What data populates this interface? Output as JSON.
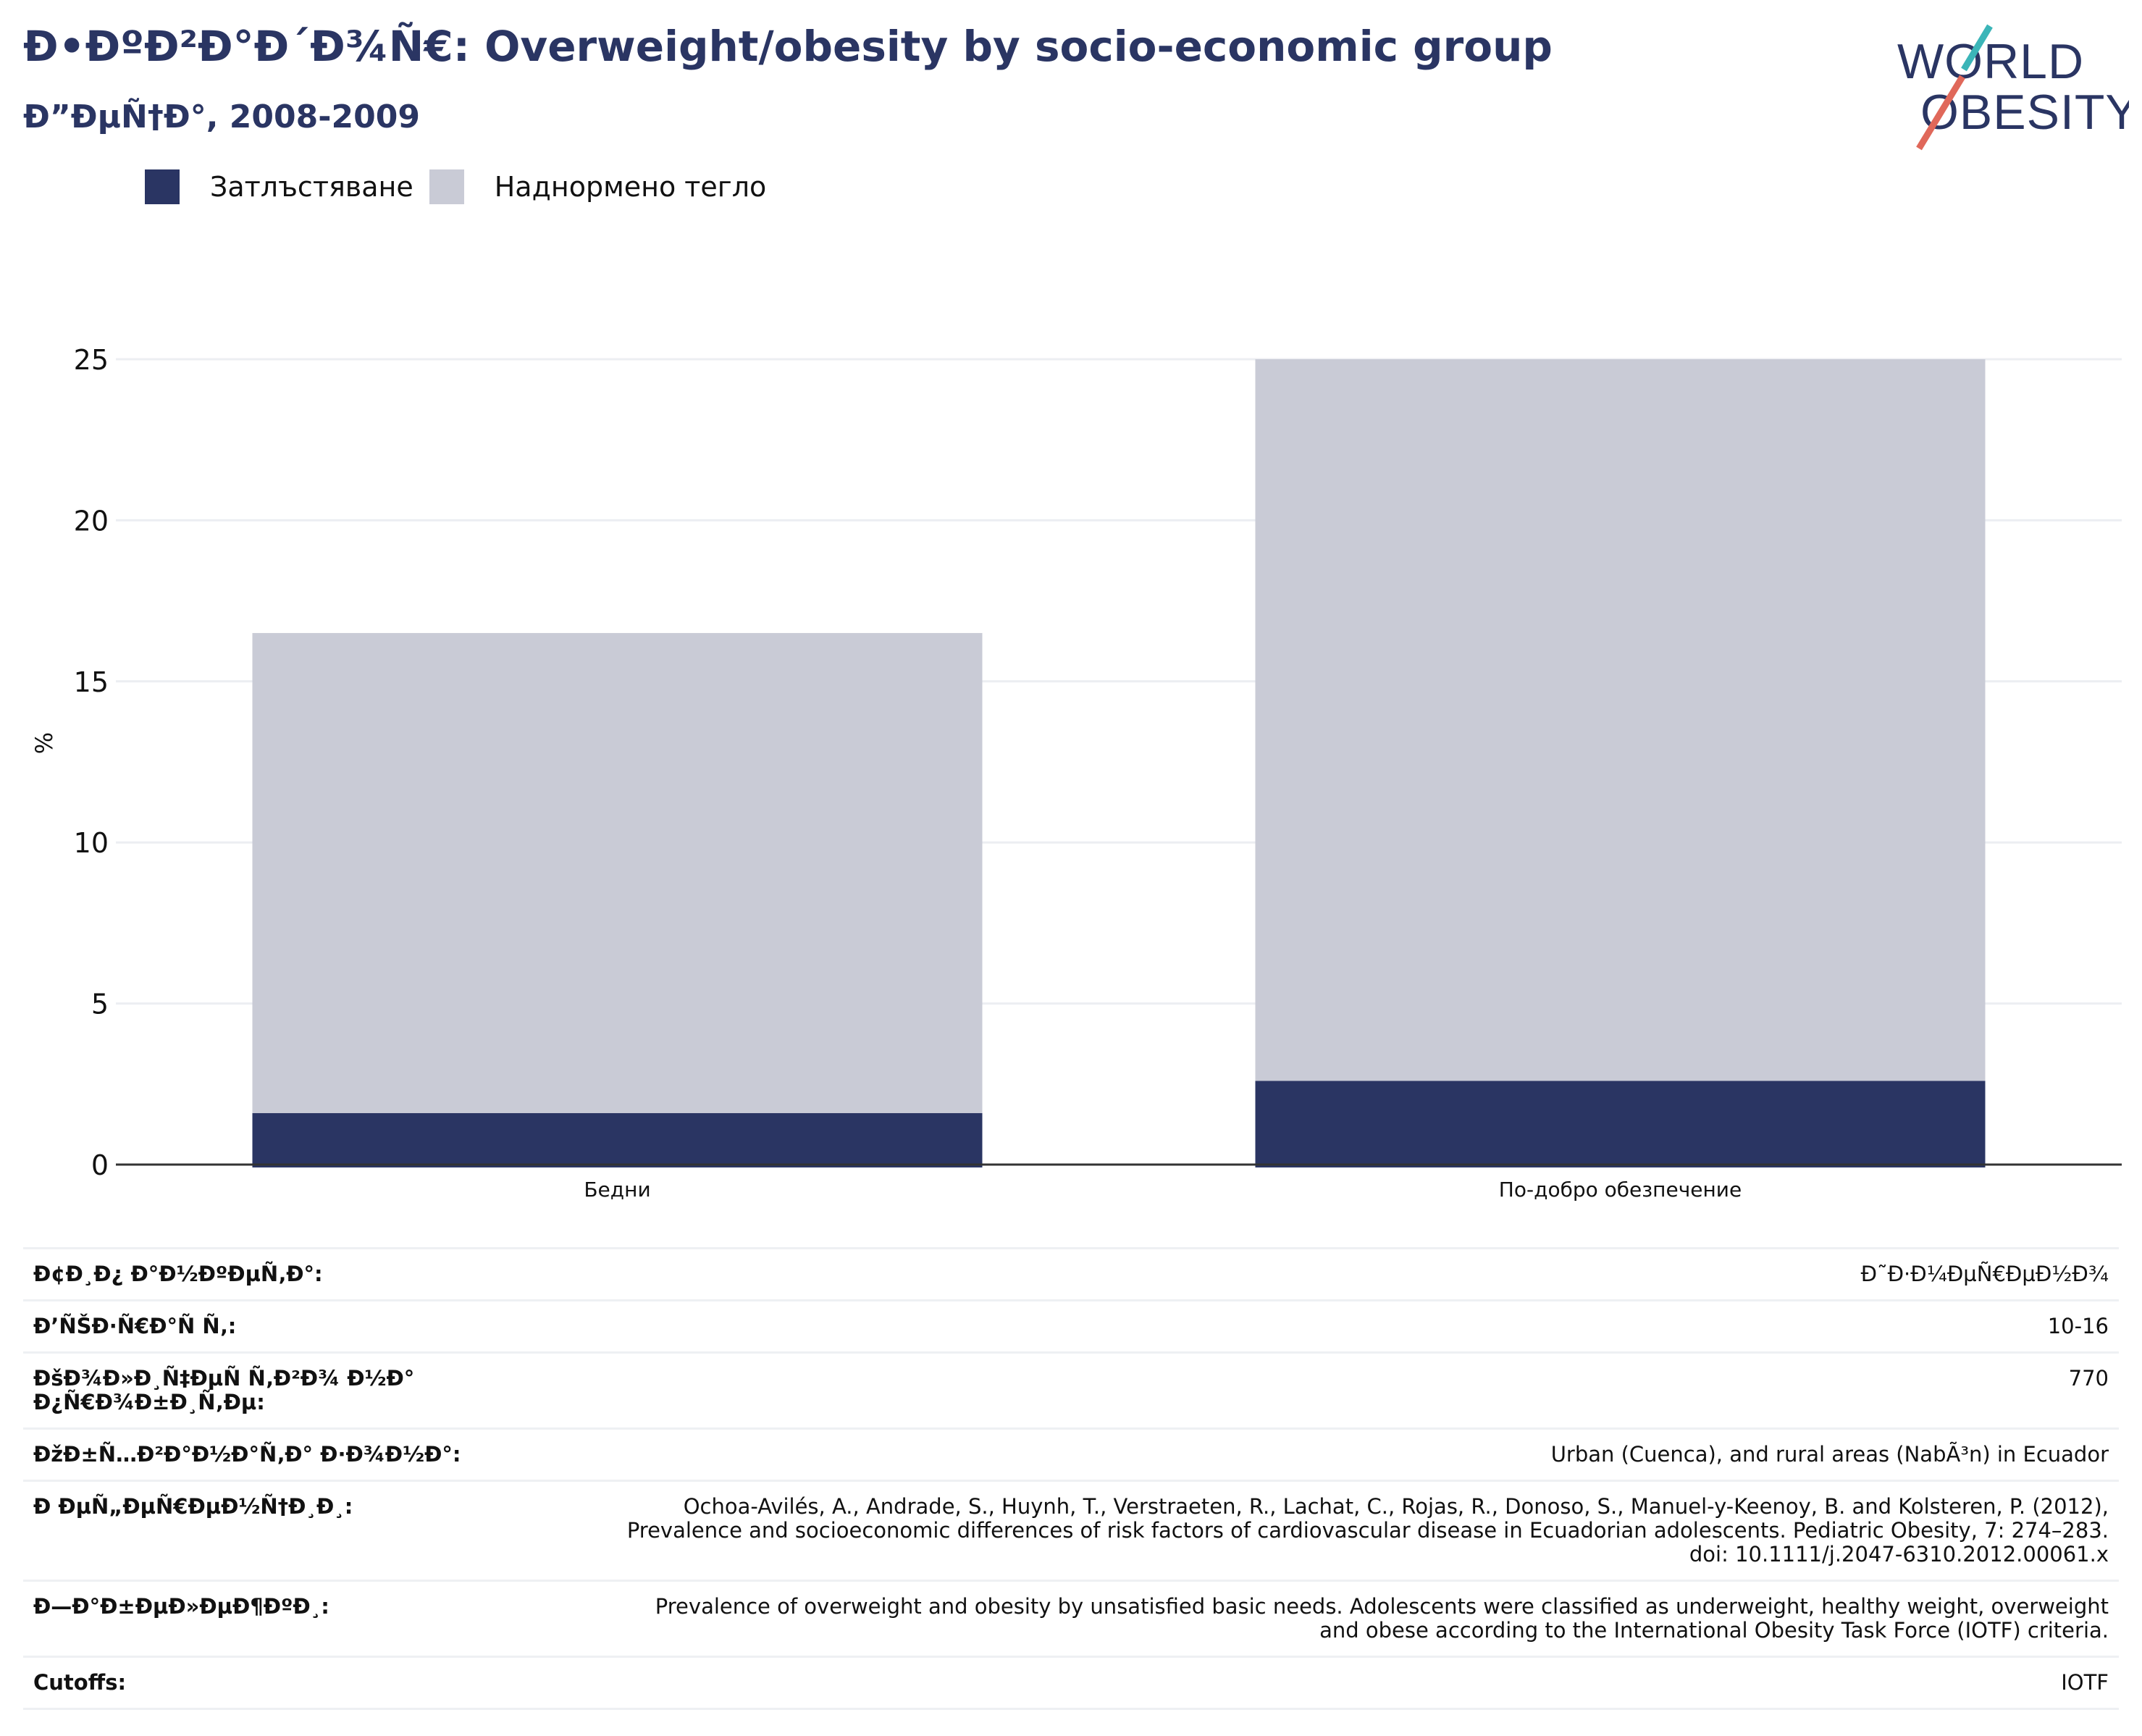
{
  "header": {
    "title": "Ð•ÐºÐ²Ð°Ð´Ð¾Ñ€: Overweight/obesity by socio-economic group",
    "subtitle": "Ð”ÐµÑ†Ð°, 2008-2009"
  },
  "logo": {
    "line1": "WORLD",
    "line2": "OBESITY"
  },
  "colors": {
    "obesity": "#2a3563",
    "overweight": "#c9cbd6",
    "text": "#2a3563",
    "logo_teal": "#3bb5b8",
    "logo_red": "#e0685a"
  },
  "legend": [
    {
      "label": "Затлъстяване",
      "color": "#2a3563"
    },
    {
      "label": "Наднормено тегло",
      "color": "#c9cbd6"
    }
  ],
  "chart_data": {
    "type": "bar",
    "stacked": true,
    "categories": [
      "Бедни",
      "По-добро обезпечение"
    ],
    "series": [
      {
        "name": "Затлъстяване",
        "values": [
          1.6,
          2.6
        ],
        "color": "#2a3563"
      },
      {
        "name": "Наднормено тегло",
        "values": [
          14.9,
          22.4
        ],
        "color": "#c9cbd6"
      }
    ],
    "ylabel": "%",
    "yticks": [
      0,
      5,
      10,
      15,
      20,
      25
    ],
    "ylim": [
      0,
      25
    ],
    "grid": true,
    "legend_position": "top-left"
  },
  "info": [
    {
      "label": "Ð¢Ð¸Ð¿ Ð°Ð½ÐºÐµÑ‚Ð°:",
      "value": "Ð˜Ð·Ð¼ÐµÑ€ÐµÐ½Ð¾"
    },
    {
      "label": "Ð’ÑŠÐ·Ñ€Ð°Ñ Ñ‚:",
      "value": "10-16"
    },
    {
      "label": "ÐšÐ¾Ð»Ð¸Ñ‡ÐµÑ Ñ‚Ð²Ð¾ Ð½Ð° Ð¿Ñ€Ð¾Ð±Ð¸Ñ‚Ðµ:",
      "value": "770"
    },
    {
      "label": "ÐžÐ±Ñ…Ð²Ð°Ð½Ð°Ñ‚Ð° Ð·Ð¾Ð½Ð°:",
      "value": "Urban (Cuenca), and rural areas (NabÃ³n) in Ecuador"
    },
    {
      "label": "Ð ÐµÑ„ÐµÑ€ÐµÐ½Ñ†Ð¸Ð¸:",
      "value": "Ochoa-Avilés, A., Andrade, S., Huynh, T., Verstraeten, R., Lachat, C., Rojas, R., Donoso, S., Manuel-y-Keenoy, B. and Kolsteren, P. (2012),\nPrevalence and socioeconomic differences of risk factors of cardiovascular disease in Ecuadorian adolescents. Pediatric Obesity, 7: 274–283.\ndoi: 10.1111/j.2047-6310.2012.00061.x"
    },
    {
      "label": "Ð—Ð°Ð±ÐµÐ»ÐµÐ¶ÐºÐ¸:",
      "value": "Prevalence of overweight and obesity by unsatisfied basic needs. Adolescents were classified as underweight, healthy weight, overweight\nand obese according to the International Obesity Task Force (IOTF) criteria."
    },
    {
      "label": "Cutoffs:",
      "value": "IOTF"
    }
  ]
}
